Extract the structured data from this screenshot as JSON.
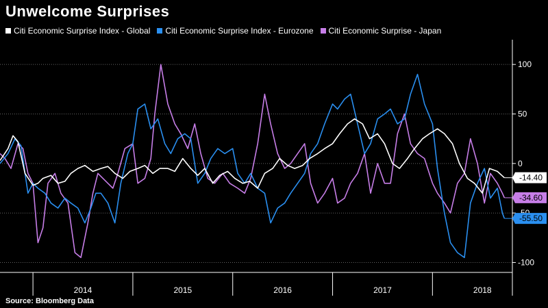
{
  "title": "Unwelcome Surprises",
  "source": "Source: Bloomberg Data",
  "chart_data": {
    "type": "line",
    "ylim": [
      -110,
      125
    ],
    "yticks": [
      100,
      50,
      0,
      -50,
      -100
    ],
    "ytick_labels": [
      "100",
      "50",
      "0",
      "-50",
      "-100"
    ],
    "x_start": 2013.67,
    "x_end": 2018.8,
    "xtick_labels": [
      "2014",
      "2015",
      "2016",
      "2017",
      "2018"
    ],
    "xtick_centers": [
      2014.5,
      2015.5,
      2016.5,
      2017.5,
      2018.5
    ],
    "year_boundaries": [
      2014,
      2015,
      2016,
      2017,
      2018
    ],
    "series": [
      {
        "name": "Citi Economic Surprise Index - Global",
        "color": "#ffffff",
        "end_label": "-14.40",
        "x": [
          2013.67,
          2013.75,
          2013.8,
          2013.85,
          2013.92,
          2014.0,
          2014.05,
          2014.1,
          2014.18,
          2014.25,
          2014.32,
          2014.38,
          2014.45,
          2014.52,
          2014.6,
          2014.68,
          2014.75,
          2014.82,
          2014.9,
          2014.97,
          2015.05,
          2015.12,
          2015.2,
          2015.27,
          2015.35,
          2015.42,
          2015.5,
          2015.58,
          2015.65,
          2015.72,
          2015.8,
          2015.87,
          2015.95,
          2016.02,
          2016.1,
          2016.17,
          2016.25,
          2016.32,
          2016.4,
          2016.47,
          2016.55,
          2016.62,
          2016.7,
          2016.77,
          2016.85,
          2016.92,
          2017.0,
          2017.07,
          2017.15,
          2017.22,
          2017.3,
          2017.37,
          2017.45,
          2017.52,
          2017.6,
          2017.67,
          2017.75,
          2017.82,
          2017.9,
          2017.97,
          2018.05,
          2018.12,
          2018.2,
          2018.27,
          2018.35,
          2018.42,
          2018.5,
          2018.57,
          2018.65,
          2018.72
        ],
        "y": [
          3,
          15,
          28,
          22,
          -10,
          -22,
          -20,
          -15,
          -12,
          -20,
          -18,
          -10,
          -5,
          -2,
          -8,
          -5,
          -3,
          -10,
          -15,
          -8,
          -5,
          -2,
          -10,
          -5,
          -5,
          -8,
          5,
          -5,
          -12,
          -5,
          -20,
          -12,
          -8,
          -15,
          -20,
          -18,
          -25,
          -10,
          -5,
          5,
          -2,
          -5,
          -2,
          5,
          10,
          15,
          20,
          30,
          40,
          45,
          40,
          25,
          30,
          20,
          0,
          -5,
          5,
          15,
          25,
          30,
          35,
          30,
          20,
          0,
          -15,
          -20,
          -30,
          -5,
          -8,
          -14.4
        ]
      },
      {
        "name": "Citi Economic Surprise Index - Eurozone",
        "color": "#2a8ff0",
        "end_label": "-55.50",
        "x": [
          2013.67,
          2013.75,
          2013.82,
          2013.88,
          2013.95,
          2014.0,
          2014.05,
          2014.12,
          2014.18,
          2014.25,
          2014.32,
          2014.38,
          2014.45,
          2014.52,
          2014.58,
          2014.63,
          2014.68,
          2014.75,
          2014.82,
          2014.88,
          2014.95,
          2015.0,
          2015.05,
          2015.12,
          2015.18,
          2015.25,
          2015.32,
          2015.38,
          2015.45,
          2015.52,
          2015.58,
          2015.65,
          2015.72,
          2015.78,
          2015.85,
          2015.92,
          2016.0,
          2016.05,
          2016.12,
          2016.18,
          2016.25,
          2016.32,
          2016.38,
          2016.45,
          2016.52,
          2016.58,
          2016.65,
          2016.72,
          2016.78,
          2016.85,
          2016.92,
          2017.0,
          2017.05,
          2017.12,
          2017.18,
          2017.25,
          2017.32,
          2017.38,
          2017.45,
          2017.52,
          2017.58,
          2017.65,
          2017.72,
          2017.78,
          2017.85,
          2017.92,
          2018.0,
          2018.05,
          2018.12,
          2018.18,
          2018.25,
          2018.32,
          2018.38,
          2018.45,
          2018.52,
          2018.58,
          2018.65,
          2018.7,
          2018.72
        ],
        "y": [
          0,
          10,
          25,
          18,
          -30,
          -20,
          -25,
          -30,
          -40,
          -45,
          -35,
          -40,
          -45,
          -60,
          -45,
          -30,
          -30,
          -40,
          -60,
          -20,
          10,
          20,
          55,
          60,
          35,
          45,
          20,
          10,
          25,
          30,
          25,
          -20,
          -10,
          5,
          15,
          10,
          15,
          -10,
          -20,
          -10,
          -25,
          -30,
          -60,
          -45,
          -40,
          -30,
          -20,
          -10,
          10,
          20,
          40,
          60,
          55,
          65,
          70,
          40,
          10,
          20,
          45,
          50,
          55,
          40,
          45,
          70,
          90,
          60,
          40,
          -5,
          -50,
          -80,
          -90,
          -95,
          -40,
          -20,
          -5,
          -35,
          -25,
          -50,
          -55.5
        ]
      },
      {
        "name": "Citi Economic Surprise - Japan",
        "color": "#c77ee8",
        "end_label": "-34.60",
        "x": [
          2013.67,
          2013.72,
          2013.78,
          2013.85,
          2013.9,
          2013.95,
          2014.0,
          2014.05,
          2014.1,
          2014.15,
          2014.22,
          2014.28,
          2014.35,
          2014.42,
          2014.48,
          2014.55,
          2014.6,
          2014.65,
          2014.7,
          2014.75,
          2014.8,
          2014.85,
          2014.92,
          2015.0,
          2015.05,
          2015.12,
          2015.18,
          2015.22,
          2015.28,
          2015.35,
          2015.42,
          2015.48,
          2015.55,
          2015.62,
          2015.68,
          2015.75,
          2015.82,
          2015.9,
          2015.97,
          2016.05,
          2016.12,
          2016.18,
          2016.25,
          2016.32,
          2016.38,
          2016.45,
          2016.52,
          2016.58,
          2016.65,
          2016.72,
          2016.78,
          2016.85,
          2016.92,
          2017.0,
          2017.05,
          2017.12,
          2017.18,
          2017.25,
          2017.32,
          2017.38,
          2017.45,
          2017.52,
          2017.58,
          2017.65,
          2017.72,
          2017.78,
          2017.85,
          2017.92,
          2018.0,
          2018.05,
          2018.12,
          2018.18,
          2018.25,
          2018.32,
          2018.38,
          2018.45,
          2018.52,
          2018.58,
          2018.65,
          2018.7,
          2018.72
        ],
        "y": [
          10,
          5,
          -5,
          20,
          15,
          -10,
          -20,
          -80,
          -65,
          -20,
          -10,
          -30,
          -40,
          -90,
          -95,
          -60,
          -30,
          -10,
          -15,
          -20,
          -25,
          -10,
          15,
          20,
          -20,
          -15,
          5,
          50,
          100,
          60,
          40,
          30,
          15,
          40,
          10,
          -15,
          -20,
          -10,
          -20,
          -25,
          -30,
          -15,
          20,
          70,
          40,
          10,
          -5,
          0,
          10,
          20,
          -20,
          -40,
          -30,
          -15,
          -40,
          -35,
          -20,
          -10,
          10,
          -30,
          0,
          -20,
          -20,
          30,
          50,
          20,
          10,
          5,
          -20,
          -30,
          -40,
          -50,
          -20,
          -10,
          25,
          0,
          -40,
          -10,
          -20,
          -30,
          -34.6
        ]
      }
    ]
  }
}
